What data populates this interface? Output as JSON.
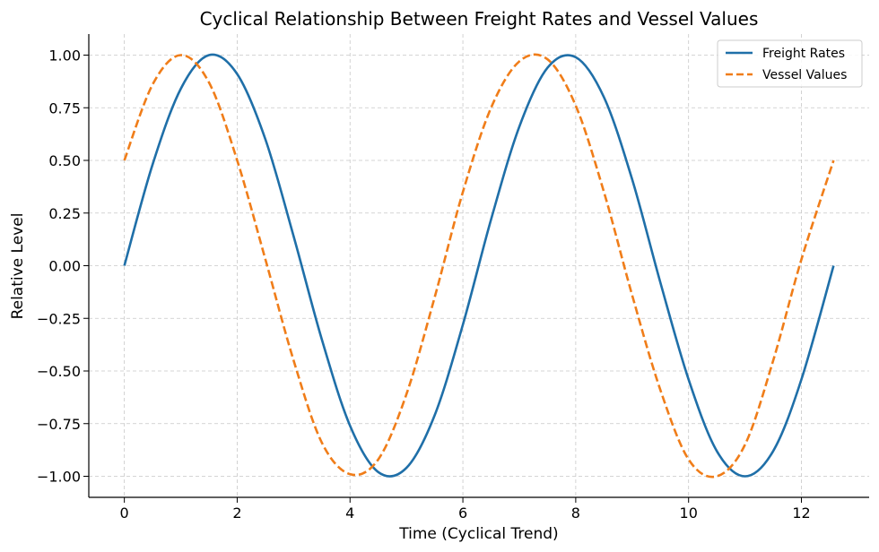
{
  "chart_data": {
    "type": "line",
    "title": "Cyclical Relationship Between Freight Rates and Vessel Values",
    "xlabel": "Time (Cyclical Trend)",
    "ylabel": "Relative Level",
    "xlim": [
      -0.63,
      13.2
    ],
    "ylim": [
      -1.1,
      1.1
    ],
    "x_ticks": [
      0,
      2,
      4,
      6,
      8,
      10,
      12
    ],
    "x_tick_labels": [
      "0",
      "2",
      "4",
      "6",
      "8",
      "10",
      "12"
    ],
    "y_ticks": [
      1.0,
      0.75,
      0.5,
      0.25,
      0.0,
      -0.25,
      -0.5,
      -0.75,
      -1.0
    ],
    "y_tick_labels": [
      "1.00",
      "0.75",
      "0.50",
      "0.25",
      "0.00",
      "−0.25",
      "−0.50",
      "−0.75",
      "−1.00"
    ],
    "grid": true,
    "legend_position": "top-right",
    "series": [
      {
        "name": "Freight Rates",
        "color": "#1f6fa8",
        "style": "solid",
        "x": [
          0,
          0.5,
          1.0,
          1.5,
          2.0,
          2.5,
          3.0,
          3.5,
          4.0,
          4.5,
          5.0,
          5.5,
          6.0,
          6.5,
          7.0,
          7.5,
          8.0,
          8.5,
          9.0,
          9.5,
          10.0,
          10.5,
          11.0,
          11.5,
          12.0,
          12.57
        ],
        "y": [
          0.0,
          0.48,
          0.84,
          1.0,
          0.91,
          0.6,
          0.14,
          -0.35,
          -0.76,
          -0.98,
          -0.96,
          -0.71,
          -0.28,
          0.22,
          0.66,
          0.94,
          0.99,
          0.8,
          0.41,
          -0.08,
          -0.54,
          -0.88,
          -1.0,
          -0.88,
          -0.54,
          0.0
        ]
      },
      {
        "name": "Vessel Values",
        "color": "#f07d19",
        "style": "dashed",
        "x": [
          0,
          0.5,
          1.0,
          1.5,
          2.0,
          2.5,
          3.0,
          3.5,
          4.0,
          4.5,
          5.0,
          5.5,
          6.0,
          6.5,
          7.0,
          7.5,
          8.0,
          8.5,
          9.0,
          9.5,
          10.0,
          10.5,
          11.0,
          11.5,
          12.0,
          12.57
        ],
        "y": [
          0.5,
          0.86,
          1.0,
          0.87,
          0.5,
          0.03,
          -0.45,
          -0.84,
          -0.99,
          -0.92,
          -0.61,
          -0.15,
          0.35,
          0.75,
          0.97,
          0.98,
          0.76,
          0.35,
          -0.14,
          -0.59,
          -0.92,
          -1.0,
          -0.85,
          -0.45,
          0.03,
          0.5
        ]
      }
    ]
  }
}
